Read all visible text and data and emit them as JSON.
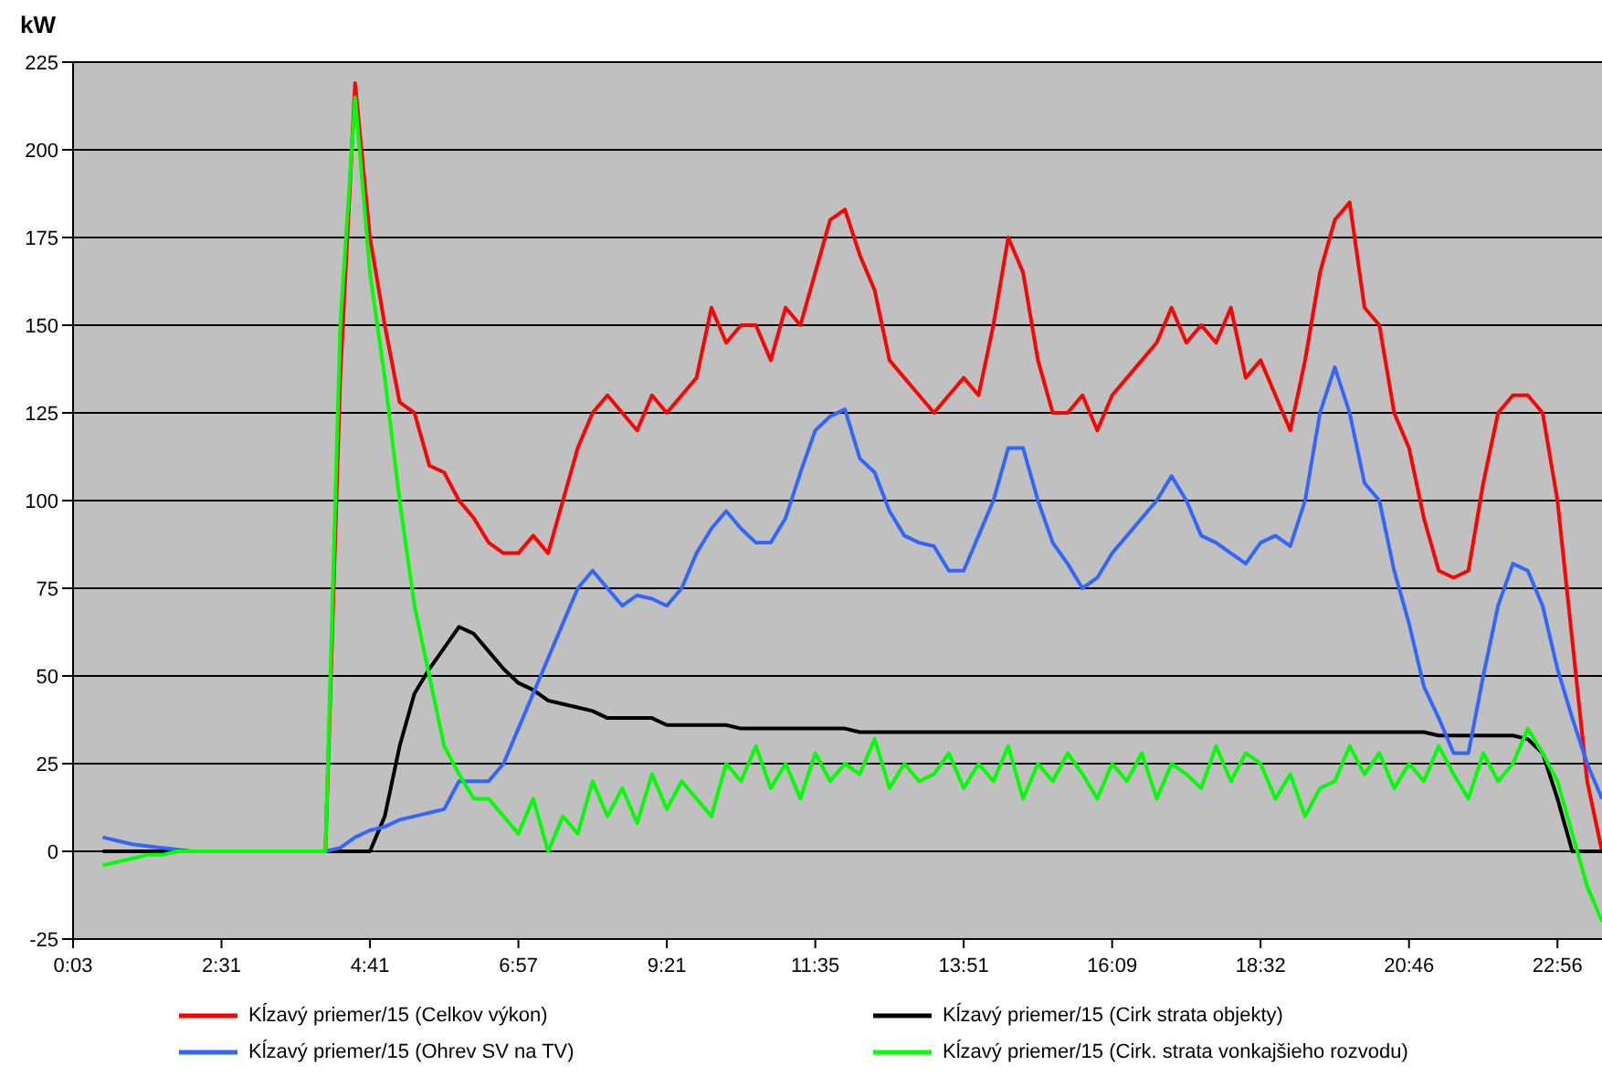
{
  "chart_data": {
    "type": "line",
    "ylabel": "kW",
    "categories": [
      "0:03",
      null,
      null,
      null,
      null,
      null,
      null,
      null,
      null,
      null,
      "2:31",
      null,
      null,
      null,
      null,
      null,
      null,
      null,
      null,
      null,
      "4:41",
      null,
      null,
      null,
      null,
      null,
      null,
      null,
      null,
      null,
      "6:57",
      null,
      null,
      null,
      null,
      null,
      null,
      null,
      null,
      null,
      "9:21",
      null,
      null,
      null,
      null,
      null,
      null,
      null,
      null,
      null,
      "11:35",
      null,
      null,
      null,
      null,
      null,
      null,
      null,
      null,
      null,
      "13:51",
      null,
      null,
      null,
      null,
      null,
      null,
      null,
      null,
      null,
      "16:09",
      null,
      null,
      null,
      null,
      null,
      null,
      null,
      null,
      null,
      "18:32",
      null,
      null,
      null,
      null,
      null,
      null,
      null,
      null,
      null,
      "20:46",
      null,
      null,
      null,
      null,
      null,
      null,
      null,
      null,
      null,
      "22:56",
      null,
      null,
      null
    ],
    "series": [
      {
        "name": "Kĺzavý priemer/15 (Celkov výkon)",
        "color": "#ff0000",
        "values": [
          null,
          null,
          null,
          null,
          null,
          null,
          null,
          null,
          null,
          null,
          null,
          null,
          null,
          null,
          null,
          null,
          null,
          0,
          135,
          219,
          175,
          150,
          128,
          125,
          110,
          108,
          100,
          95,
          88,
          85,
          85,
          90,
          85,
          100,
          115,
          125,
          130,
          125,
          120,
          130,
          125,
          130,
          135,
          155,
          145,
          150,
          150,
          140,
          155,
          150,
          165,
          180,
          183,
          170,
          160,
          140,
          135,
          130,
          125,
          130,
          135,
          130,
          150,
          175,
          165,
          140,
          125,
          125,
          130,
          120,
          130,
          135,
          140,
          145,
          155,
          145,
          150,
          145,
          155,
          135,
          140,
          130,
          120,
          140,
          165,
          180,
          185,
          155,
          150,
          125,
          115,
          95,
          80,
          78,
          80,
          105,
          125,
          130,
          130,
          125,
          100,
          60,
          20,
          0
        ]
      },
      {
        "name": "Kĺzavý priemer/15 (Cirk strata objekty)",
        "color": "#000000",
        "values": [
          null,
          null,
          0,
          0,
          0,
          0,
          0,
          0,
          0,
          0,
          0,
          0,
          0,
          0,
          0,
          0,
          0,
          0,
          0,
          0,
          0,
          10,
          30,
          45,
          52,
          58,
          64,
          62,
          57,
          52,
          48,
          46,
          43,
          42,
          41,
          40,
          38,
          38,
          38,
          38,
          36,
          36,
          36,
          36,
          36,
          35,
          35,
          35,
          35,
          35,
          35,
          35,
          35,
          34,
          34,
          34,
          34,
          34,
          34,
          34,
          34,
          34,
          34,
          34,
          34,
          34,
          34,
          34,
          34,
          34,
          34,
          34,
          34,
          34,
          34,
          34,
          34,
          34,
          34,
          34,
          34,
          34,
          34,
          34,
          34,
          34,
          34,
          34,
          34,
          34,
          34,
          34,
          33,
          33,
          33,
          33,
          33,
          33,
          32,
          28,
          15,
          0,
          0,
          0
        ]
      },
      {
        "name": "Kĺzavý priemer/15 (Ohrev SV na TV)",
        "color": "#3366ff",
        "values": [
          null,
          null,
          4,
          3,
          2,
          1.5,
          1,
          0.5,
          0,
          0,
          0,
          0,
          0,
          0,
          0,
          0,
          0,
          0,
          1,
          4,
          6,
          7,
          9,
          10,
          11,
          12,
          20,
          20,
          20,
          25,
          35,
          45,
          55,
          65,
          75,
          80,
          75,
          70,
          73,
          72,
          70,
          75,
          85,
          92,
          97,
          92,
          88,
          88,
          95,
          108,
          120,
          124,
          126,
          112,
          108,
          97,
          90,
          88,
          87,
          80,
          80,
          90,
          100,
          115,
          115,
          100,
          88,
          82,
          75,
          78,
          85,
          90,
          95,
          100,
          107,
          100,
          90,
          88,
          85,
          82,
          88,
          90,
          87,
          100,
          125,
          138,
          125,
          105,
          100,
          80,
          65,
          47,
          38,
          28,
          28,
          50,
          70,
          82,
          80,
          70,
          52,
          38,
          25,
          15
        ]
      },
      {
        "name": "Kĺzavý priemer/15 (Cirk. strata vonkajšieho rozvodu)",
        "color": "#00ff00",
        "values": [
          null,
          null,
          -4,
          -3,
          -2,
          -1,
          -1,
          0,
          0,
          0,
          0,
          0,
          0,
          0,
          0,
          0,
          0,
          0,
          150,
          215,
          165,
          135,
          100,
          70,
          50,
          30,
          22,
          15,
          15,
          10,
          5,
          15,
          0,
          10,
          5,
          20,
          10,
          18,
          8,
          22,
          12,
          20,
          15,
          10,
          25,
          20,
          30,
          18,
          25,
          15,
          28,
          20,
          25,
          22,
          32,
          18,
          25,
          20,
          22,
          28,
          18,
          25,
          20,
          30,
          15,
          25,
          20,
          28,
          22,
          15,
          25,
          20,
          28,
          15,
          25,
          22,
          18,
          30,
          20,
          28,
          25,
          15,
          22,
          10,
          18,
          20,
          30,
          22,
          28,
          18,
          25,
          20,
          30,
          22,
          15,
          28,
          20,
          25,
          35,
          28,
          20,
          5,
          -10,
          -20
        ]
      }
    ],
    "ylim": [
      -25,
      225
    ],
    "yticks": [
      -25,
      0,
      25,
      50,
      75,
      100,
      125,
      150,
      175,
      200,
      225
    ],
    "grid": "y",
    "legend": "bottom",
    "marker": "none",
    "line_style": "solid"
  }
}
